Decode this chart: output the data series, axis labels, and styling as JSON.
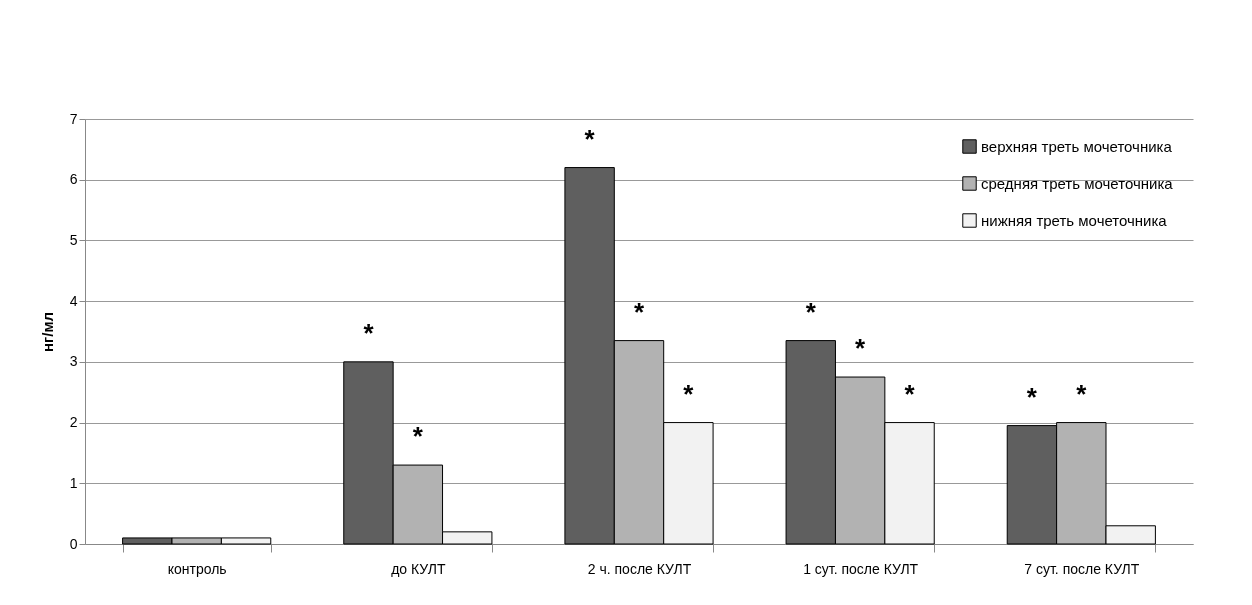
{
  "chart_data": {
    "type": "bar",
    "ylabel": "нг/мл",
    "categories": [
      "контроль",
      "до КУЛТ",
      "2 ч. после КУЛТ",
      "1 сут. после КУЛТ",
      "7 сут. после КУЛТ"
    ],
    "series": [
      {
        "name": "верхняя треть мочеточника",
        "color": "#5f5f5f",
        "values": [
          0.1,
          3.0,
          6.2,
          3.35,
          1.95
        ],
        "value_labels": [
          null,
          "*",
          "*",
          "*",
          "*"
        ]
      },
      {
        "name": "средняя треть мочеточника",
        "color": "#b2b2b2",
        "values": [
          0.1,
          1.3,
          3.35,
          2.75,
          2.0
        ],
        "value_labels": [
          null,
          "*",
          "*",
          "*",
          "*"
        ]
      },
      {
        "name": "нижняя треть мочеточника",
        "color": "#f2f2f2",
        "values": [
          0.1,
          0.2,
          2.0,
          2.0,
          0.3
        ],
        "value_labels": [
          null,
          null,
          "*",
          "*",
          null
        ]
      }
    ],
    "ylim": [
      0,
      7
    ],
    "yticks": [
      0,
      1,
      2,
      3,
      4,
      5,
      6,
      7
    ],
    "grid": "y",
    "legend": "top right"
  }
}
